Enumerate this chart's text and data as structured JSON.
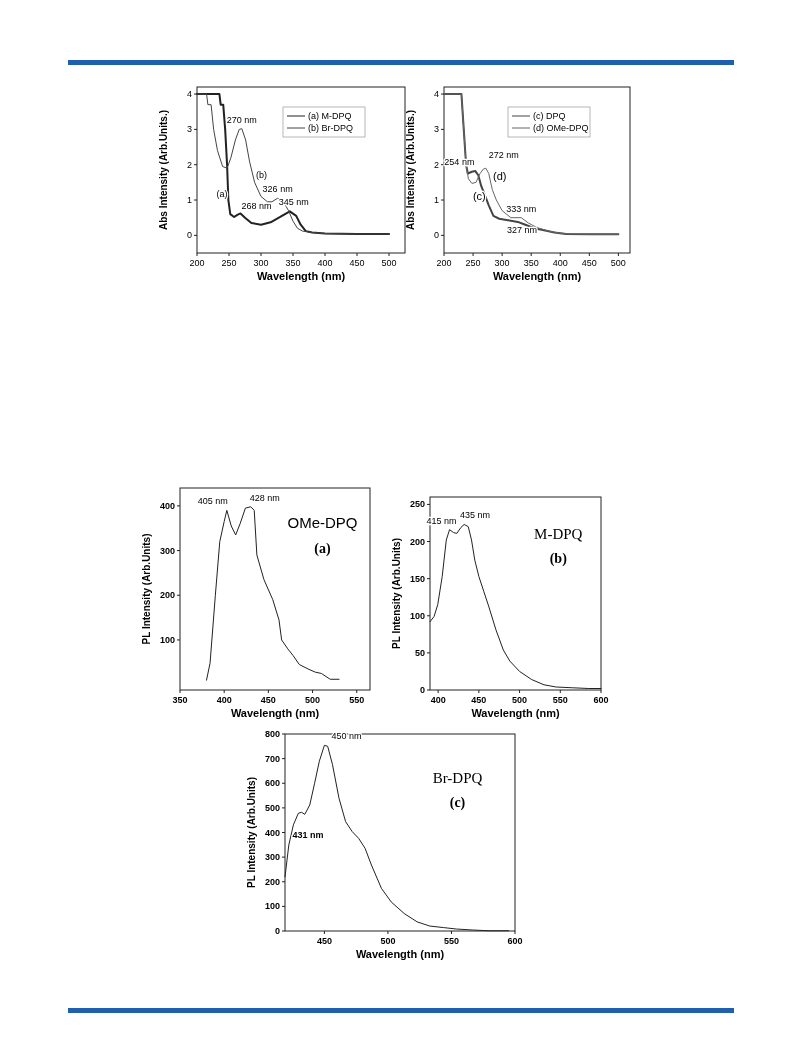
{
  "chart_data": [
    {
      "type": "line",
      "xlabel": "Wavelength (nm)",
      "ylabel": "Abs Intensity (Arb.Units.)",
      "xlim": [
        200,
        525
      ],
      "ylim": [
        -0.5,
        4.2
      ],
      "xticks": [
        200,
        250,
        300,
        350,
        400,
        450,
        500
      ],
      "yticks": [
        0,
        1,
        2,
        3,
        4
      ],
      "legend": "top right",
      "series": [
        {
          "name": "(a) M-DPQ",
          "color": "#222222",
          "x": [
            200,
            235,
            237,
            241,
            244,
            247,
            249,
            252,
            258,
            263,
            268,
            275,
            285,
            300,
            315,
            330,
            345,
            355,
            362,
            370,
            380,
            400,
            450,
            500
          ],
          "values": [
            4,
            4,
            3.7,
            3.7,
            3,
            2,
            1,
            0.6,
            0.52,
            0.58,
            0.62,
            0.5,
            0.35,
            0.3,
            0.37,
            0.52,
            0.68,
            0.55,
            0.3,
            0.12,
            0.08,
            0.05,
            0.04,
            0.04
          ]
        },
        {
          "name": "(b) Br-DPQ",
          "color": "#444444",
          "x": [
            200,
            215,
            217,
            222,
            226,
            232,
            240,
            247,
            253,
            260,
            266,
            270,
            276,
            282,
            290,
            300,
            310,
            317,
            326,
            335,
            343,
            350,
            357,
            365,
            380,
            400,
            450,
            500
          ],
          "values": [
            4,
            4,
            3.7,
            3.7,
            3,
            2.4,
            1.95,
            1.9,
            2.2,
            2.7,
            3,
            3.02,
            2.7,
            2.1,
            1.5,
            1.1,
            0.95,
            0.95,
            1.05,
            0.95,
            0.7,
            0.4,
            0.2,
            0.12,
            0.08,
            0.05,
            0.04,
            0.04
          ]
        }
      ],
      "annotations": [
        {
          "text": "270 nm",
          "x": 270,
          "y": 3.02
        },
        {
          "text": "268 nm",
          "x": 268,
          "y": 0.62
        },
        {
          "text": "326 nm",
          "x": 326,
          "y": 1.05
        },
        {
          "text": "345 nm",
          "x": 345,
          "y": 0.68
        },
        "(a)",
        "(b)"
      ]
    },
    {
      "type": "line",
      "xlabel": "Wavelength (nm)",
      "ylabel": "Abs Intensity (Arb.Units.)",
      "xlim": [
        200,
        520
      ],
      "ylim": [
        -0.5,
        4.2
      ],
      "xticks": [
        200,
        250,
        300,
        350,
        400,
        450,
        500
      ],
      "yticks": [
        0,
        1,
        2,
        3,
        4
      ],
      "legend": "top right",
      "series": [
        {
          "name": "(c) DPQ",
          "color": "#444444",
          "x": [
            200,
            230,
            234,
            238,
            241,
            248,
            254,
            259,
            264,
            270,
            277,
            285,
            295,
            310,
            327,
            340,
            355,
            370,
            390,
            410,
            450,
            500
          ],
          "values": [
            4,
            4,
            3,
            2,
            1.75,
            1.8,
            1.82,
            1.7,
            1.4,
            1.15,
            0.85,
            0.55,
            0.47,
            0.43,
            0.38,
            0.3,
            0.2,
            0.15,
            0.08,
            0.04,
            0.03,
            0.03
          ]
        },
        {
          "name": "(d) OMe-DPQ",
          "color": "#666666",
          "x": [
            200,
            230,
            234,
            238,
            242,
            248,
            255,
            262,
            268,
            272,
            277,
            283,
            290,
            300,
            315,
            333,
            345,
            360,
            380,
            400,
            415,
            450,
            500
          ],
          "values": [
            4,
            4,
            3,
            2,
            1.6,
            1.47,
            1.5,
            1.75,
            1.88,
            1.9,
            1.75,
            1.3,
            1,
            0.7,
            0.5,
            0.5,
            0.35,
            0.22,
            0.12,
            0.06,
            0.04,
            0.03,
            0.03
          ]
        }
      ],
      "annotations": [
        {
          "text": "254 nm",
          "x": 254,
          "y": 1.82
        },
        {
          "text": "272 nm",
          "x": 272,
          "y": 1.9
        },
        {
          "text": "333 nm",
          "x": 333,
          "y": 0.5
        },
        "(c)",
        "(d)",
        "327 nm"
      ]
    },
    {
      "type": "line",
      "xlabel": "Wavelength  (nm)",
      "ylabel": "PL Intensity (Arb.Units)",
      "xlim": [
        350,
        565
      ],
      "ylim": [
        -12,
        440
      ],
      "xticks": [
        350,
        400,
        450,
        500,
        550
      ],
      "yticks": [
        100,
        200,
        300,
        400
      ],
      "series": [
        {
          "color": "#222222",
          "x": [
            380,
            384,
            390,
            395,
            400,
            403,
            408,
            413,
            418,
            424,
            430,
            434,
            437,
            445,
            455,
            462,
            465,
            472,
            478,
            485,
            495,
            503,
            510,
            520,
            530
          ],
          "values": [
            10,
            48,
            200,
            320,
            365,
            390,
            355,
            335,
            360,
            395,
            398,
            390,
            290,
            235,
            190,
            145,
            100,
            80,
            65,
            45,
            35,
            28,
            25,
            12,
            12
          ]
        }
      ],
      "annotations": [
        {
          "text": "405 nm",
          "x": 403,
          "y": 390
        },
        {
          "text": "428 nm",
          "x": 430,
          "y": 398
        },
        "OMe-DPQ",
        "(a)"
      ]
    },
    {
      "type": "line",
      "xlabel": "Wavelength (nm)",
      "ylabel": "PL Intensity (Arb.Units)",
      "xlim": [
        390,
        600
      ],
      "ylim": [
        0,
        260
      ],
      "xticks": [
        400,
        450,
        500,
        550,
        600
      ],
      "yticks": [
        0,
        50,
        100,
        150,
        200,
        250
      ],
      "series": [
        {
          "color": "#222222",
          "x": [
            390,
            395,
            399.5,
            405,
            410,
            414,
            419,
            423,
            428,
            432,
            437,
            441,
            445,
            450,
            456,
            462,
            471,
            480,
            488,
            500,
            515,
            530,
            545,
            565,
            585,
            600
          ],
          "values": [
            92,
            99,
            115,
            153,
            202,
            216,
            212,
            211,
            219,
            223,
            220,
            202,
            175,
            153,
            133,
            113,
            81,
            54,
            39,
            25,
            14,
            7,
            4,
            3,
            2,
            2
          ]
        }
      ],
      "annotations": [
        {
          "text": "415 nm",
          "x": 414,
          "y": 216
        },
        {
          "text": "435 nm",
          "x": 433,
          "y": 223
        },
        "M-DPQ",
        "(b)"
      ]
    },
    {
      "type": "line",
      "xlabel": "Wavelength (nm)",
      "ylabel": "PL Intensity (Arb.Units)",
      "xlim": [
        419,
        600
      ],
      "ylim": [
        0,
        800
      ],
      "xticks": [
        450,
        500,
        550,
        600
      ],
      "yticks": [
        0,
        100,
        200,
        300,
        400,
        500,
        600,
        700,
        800
      ],
      "series": [
        {
          "color": "#222222",
          "x": [
            419,
            422,
            425.6,
            429.5,
            432,
            434.6,
            438.5,
            442.3,
            446,
            450,
            452.6,
            456.4,
            461.5,
            466.7,
            471.8,
            477,
            482,
            487,
            494.9,
            502.6,
            512.8,
            523,
            533,
            543.6,
            553.8,
            566.7,
            579.5,
            595
          ],
          "values": [
            220,
            349,
            431,
            478,
            482,
            474,
            512,
            600,
            689,
            754,
            750,
            675,
            539,
            444,
            404,
            376,
            336,
            268,
            173,
            118,
            71,
            37,
            20,
            14,
            8,
            4,
            1,
            1
          ]
        }
      ],
      "annotations": [
        {
          "text": "450 nm",
          "x": 450,
          "y": 754
        },
        "Br-DPQ",
        "(c)",
        "431 nm"
      ]
    }
  ]
}
